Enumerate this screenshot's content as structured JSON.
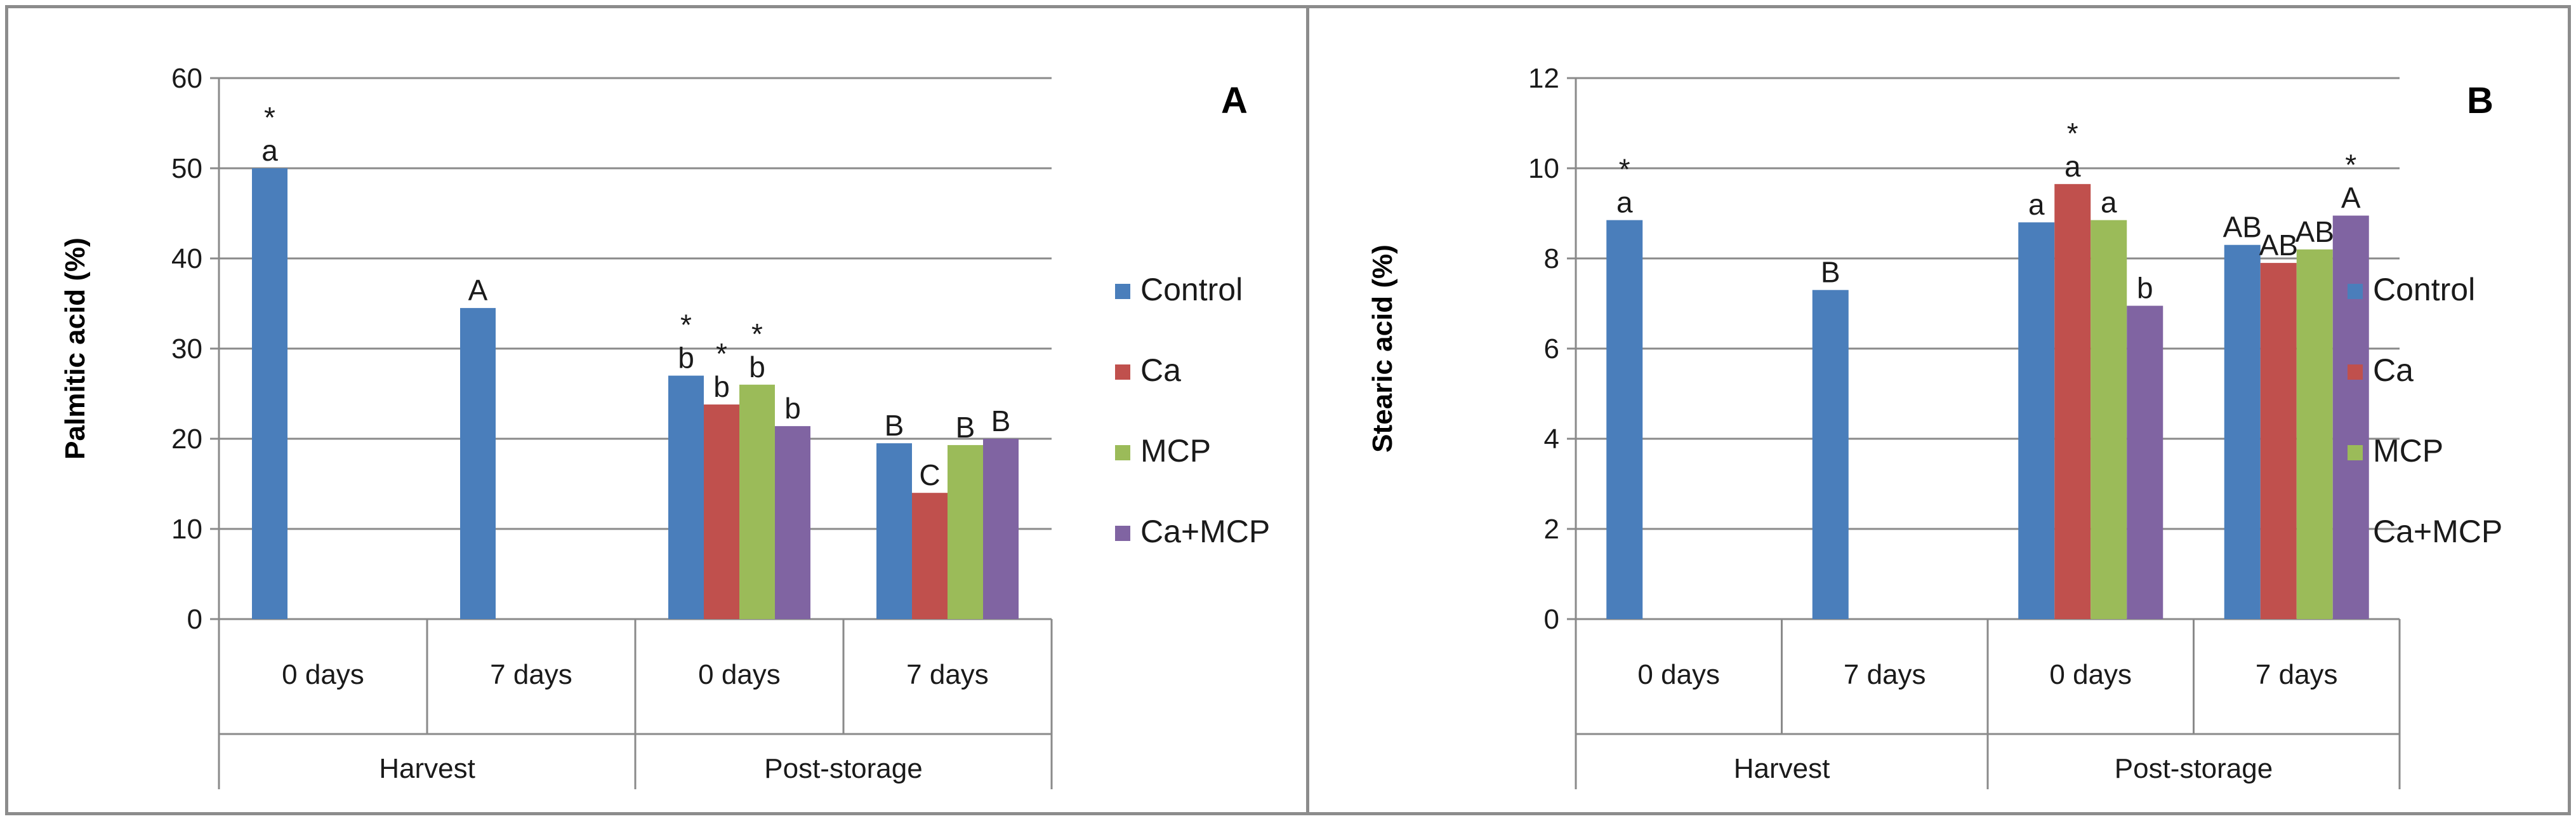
{
  "chart_data": [
    {
      "type": "bar",
      "panel_label": "A",
      "ylabel": "Palmitic acid (%)",
      "ylim": [
        0,
        60
      ],
      "yticks": [
        "0",
        "10",
        "20",
        "30",
        "40",
        "50",
        "60"
      ],
      "groups": [
        {
          "name": "Harvest",
          "categories": [
            "0 days",
            "7 days"
          ]
        },
        {
          "name": "Post-storage",
          "categories": [
            "0 days",
            "7 days"
          ]
        }
      ],
      "legend": [
        "Control",
        "Ca",
        "MCP",
        "Ca+MCP"
      ],
      "series": [
        {
          "name": "Control",
          "values": [
            50,
            34.5,
            27,
            19.5
          ]
        },
        {
          "name": "Ca",
          "values": [
            null,
            null,
            23.8,
            14
          ]
        },
        {
          "name": "MCP",
          "values": [
            null,
            null,
            26,
            19.3
          ]
        },
        {
          "name": "Ca+MCP",
          "values": [
            null,
            null,
            21.4,
            20
          ]
        }
      ],
      "letters": [
        {
          "series": "Control",
          "values": [
            "a",
            "A",
            "b",
            "B"
          ]
        },
        {
          "series": "Ca",
          "values": [
            null,
            null,
            "b",
            "C"
          ]
        },
        {
          "series": "MCP",
          "values": [
            null,
            null,
            "b",
            "B"
          ]
        },
        {
          "series": "Ca+MCP",
          "values": [
            null,
            null,
            "b",
            "B"
          ]
        }
      ],
      "stars": [
        {
          "series": "Control",
          "values": [
            "*",
            null,
            "*",
            null
          ]
        },
        {
          "series": "Ca",
          "values": [
            null,
            null,
            "*",
            null
          ]
        },
        {
          "series": "MCP",
          "values": [
            null,
            null,
            "*",
            null
          ]
        },
        {
          "series": "Ca+MCP",
          "values": [
            null,
            null,
            null,
            null
          ]
        }
      ]
    },
    {
      "type": "bar",
      "panel_label": "B",
      "ylabel": "Stearic acid (%)",
      "ylim": [
        0,
        12
      ],
      "yticks": [
        "0",
        "2",
        "4",
        "6",
        "8",
        "10",
        "12"
      ],
      "groups": [
        {
          "name": "Harvest",
          "categories": [
            "0 days",
            "7 days"
          ]
        },
        {
          "name": "Post-storage",
          "categories": [
            "0 days",
            "7 days"
          ]
        }
      ],
      "legend": [
        "Control",
        "Ca",
        "MCP",
        "Ca+MCP"
      ],
      "series": [
        {
          "name": "Control",
          "values": [
            8.85,
            7.3,
            8.8,
            8.3
          ]
        },
        {
          "name": "Ca",
          "values": [
            null,
            null,
            9.65,
            7.9
          ]
        },
        {
          "name": "MCP",
          "values": [
            null,
            null,
            8.85,
            8.2
          ]
        },
        {
          "name": "Ca+MCP",
          "values": [
            null,
            null,
            6.95,
            8.95
          ]
        }
      ],
      "letters": [
        {
          "series": "Control",
          "values": [
            "a",
            "B",
            "a",
            "AB"
          ]
        },
        {
          "series": "Ca",
          "values": [
            null,
            null,
            "a",
            "AB"
          ]
        },
        {
          "series": "MCP",
          "values": [
            null,
            null,
            "a",
            "AB"
          ]
        },
        {
          "series": "Ca+MCP",
          "values": [
            null,
            null,
            "b",
            "A"
          ]
        }
      ],
      "stars": [
        {
          "series": "Control",
          "values": [
            "*",
            null,
            null,
            null
          ]
        },
        {
          "series": "Ca",
          "values": [
            null,
            null,
            "*",
            null
          ]
        },
        {
          "series": "MCP",
          "values": [
            null,
            null,
            null,
            null
          ]
        },
        {
          "series": "Ca+MCP",
          "values": [
            null,
            null,
            null,
            "*"
          ]
        }
      ]
    }
  ],
  "colors": {
    "Control": "#4a7ebb",
    "Ca": "#c0504d",
    "MCP": "#9bbb59",
    "Ca+MCP": "#8064a2"
  }
}
